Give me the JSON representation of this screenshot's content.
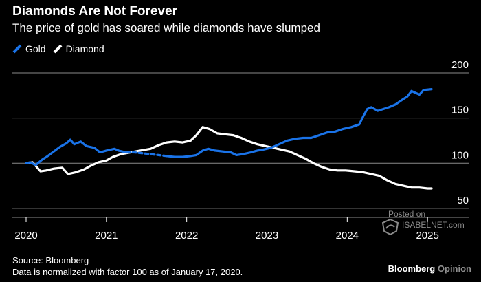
{
  "chart_data": {
    "type": "line",
    "title": "Diamonds Are Not Forever",
    "subtitle": "The price of gold has soared while diamonds have slumped",
    "xlabel": "",
    "ylabel": "",
    "x_ticks": [
      "2020",
      "2021",
      "2022",
      "2023",
      "2024",
      "2025"
    ],
    "y_ticks": [
      200,
      150,
      100,
      50
    ],
    "xlim": [
      2020.0,
      2025.05
    ],
    "ylim": [
      40,
      200
    ],
    "grid": true,
    "legend_position": "top-left",
    "series": [
      {
        "name": "Gold",
        "color": "#1a73e8",
        "dash_range": [
          2021.3,
          2021.8
        ],
        "points": [
          [
            2020.0,
            100
          ],
          [
            2020.05,
            101
          ],
          [
            2020.12,
            98
          ],
          [
            2020.2,
            104
          ],
          [
            2020.27,
            108
          ],
          [
            2020.33,
            112
          ],
          [
            2020.42,
            118
          ],
          [
            2020.5,
            122
          ],
          [
            2020.55,
            126
          ],
          [
            2020.6,
            121
          ],
          [
            2020.68,
            124
          ],
          [
            2020.75,
            119
          ],
          [
            2020.85,
            117
          ],
          [
            2020.92,
            112
          ],
          [
            2021.0,
            114
          ],
          [
            2021.1,
            116
          ],
          [
            2021.15,
            114
          ],
          [
            2021.25,
            112
          ],
          [
            2021.35,
            112
          ],
          [
            2021.45,
            111
          ],
          [
            2021.55,
            110
          ],
          [
            2021.65,
            109
          ],
          [
            2021.75,
            108
          ],
          [
            2021.85,
            107
          ],
          [
            2021.95,
            107
          ],
          [
            2022.05,
            108
          ],
          [
            2022.12,
            109
          ],
          [
            2022.2,
            114
          ],
          [
            2022.27,
            116
          ],
          [
            2022.35,
            114
          ],
          [
            2022.45,
            113
          ],
          [
            2022.55,
            112
          ],
          [
            2022.62,
            109
          ],
          [
            2022.7,
            110
          ],
          [
            2022.8,
            112
          ],
          [
            2022.88,
            114
          ],
          [
            2022.95,
            115
          ],
          [
            2023.05,
            117
          ],
          [
            2023.15,
            121
          ],
          [
            2023.25,
            125
          ],
          [
            2023.35,
            127
          ],
          [
            2023.45,
            128
          ],
          [
            2023.55,
            128
          ],
          [
            2023.65,
            131
          ],
          [
            2023.75,
            134
          ],
          [
            2023.85,
            135
          ],
          [
            2023.95,
            138
          ],
          [
            2024.05,
            140
          ],
          [
            2024.15,
            143
          ],
          [
            2024.2,
            152
          ],
          [
            2024.25,
            160
          ],
          [
            2024.3,
            162
          ],
          [
            2024.38,
            158
          ],
          [
            2024.45,
            160
          ],
          [
            2024.52,
            162
          ],
          [
            2024.6,
            165
          ],
          [
            2024.68,
            170
          ],
          [
            2024.75,
            174
          ],
          [
            2024.8,
            180
          ],
          [
            2024.85,
            178
          ],
          [
            2024.9,
            176
          ],
          [
            2024.95,
            181
          ],
          [
            2025.05,
            182
          ]
        ]
      },
      {
        "name": "Diamond",
        "color": "#ffffff",
        "points": [
          [
            2020.0,
            100
          ],
          [
            2020.08,
            101
          ],
          [
            2020.12,
            97
          ],
          [
            2020.18,
            91
          ],
          [
            2020.25,
            92
          ],
          [
            2020.35,
            94
          ],
          [
            2020.45,
            95
          ],
          [
            2020.52,
            88
          ],
          [
            2020.62,
            90
          ],
          [
            2020.72,
            93
          ],
          [
            2020.8,
            97
          ],
          [
            2020.9,
            101
          ],
          [
            2021.0,
            103
          ],
          [
            2021.08,
            107
          ],
          [
            2021.18,
            110
          ],
          [
            2021.3,
            112
          ],
          [
            2021.42,
            114
          ],
          [
            2021.55,
            116
          ],
          [
            2021.65,
            120
          ],
          [
            2021.75,
            123
          ],
          [
            2021.85,
            124
          ],
          [
            2021.95,
            123
          ],
          [
            2022.05,
            125
          ],
          [
            2022.12,
            131
          ],
          [
            2022.2,
            140
          ],
          [
            2022.28,
            138
          ],
          [
            2022.38,
            133
          ],
          [
            2022.48,
            132
          ],
          [
            2022.58,
            131
          ],
          [
            2022.68,
            128
          ],
          [
            2022.78,
            124
          ],
          [
            2022.88,
            121
          ],
          [
            2022.98,
            119
          ],
          [
            2023.08,
            117
          ],
          [
            2023.18,
            115
          ],
          [
            2023.28,
            113
          ],
          [
            2023.38,
            109
          ],
          [
            2023.48,
            105
          ],
          [
            2023.58,
            100
          ],
          [
            2023.68,
            96
          ],
          [
            2023.78,
            93
          ],
          [
            2023.88,
            92
          ],
          [
            2023.98,
            92
          ],
          [
            2024.1,
            91
          ],
          [
            2024.2,
            90
          ],
          [
            2024.3,
            88
          ],
          [
            2024.4,
            86
          ],
          [
            2024.5,
            81
          ],
          [
            2024.6,
            77
          ],
          [
            2024.7,
            75
          ],
          [
            2024.8,
            73
          ],
          [
            2024.9,
            73
          ],
          [
            2025.0,
            72
          ],
          [
            2025.05,
            72
          ]
        ]
      }
    ]
  },
  "footer": {
    "source": "Source: Bloomberg",
    "note": "Data is normalized with factor 100 as of January 17, 2020.",
    "brand_main": "Bloomberg",
    "brand_sub": "Opinion"
  },
  "watermark": {
    "posted": "Posted on",
    "site": "ISABELNET.com"
  },
  "colors": {
    "gold": "#1a73e8",
    "diamond": "#ffffff",
    "grid": "#8a8a8a",
    "background": "#000000"
  }
}
